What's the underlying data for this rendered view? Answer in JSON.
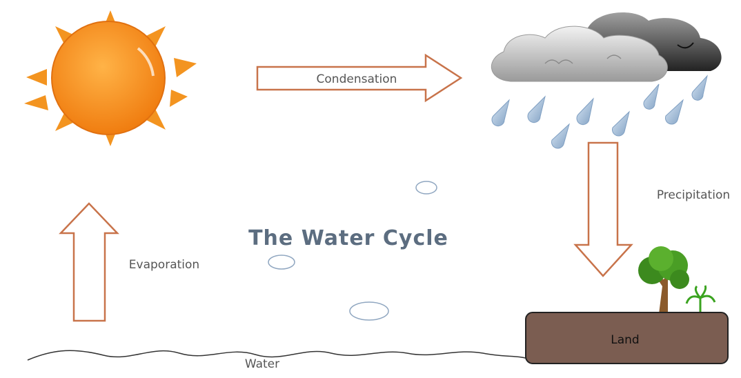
{
  "title": "The Water Cycle",
  "labels": {
    "condensation": "Condensation",
    "precipitation": "Precipitation",
    "evaporation": "Evaporation",
    "land": "Land",
    "water": "Water"
  }
}
